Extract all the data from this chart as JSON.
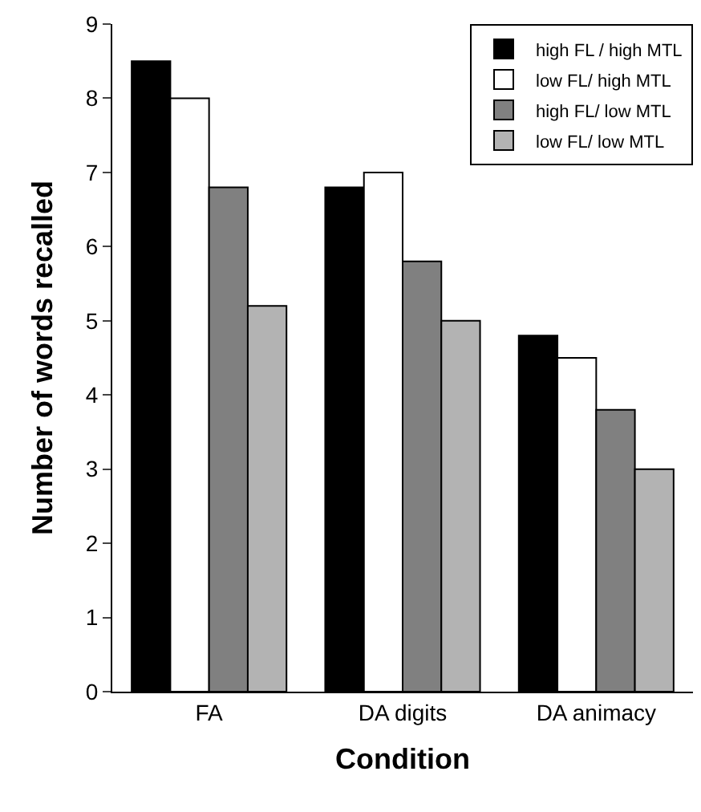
{
  "chart_data": {
    "type": "bar",
    "xlabel": "Condition",
    "ylabel": "Number of words recalled",
    "categories": [
      "FA",
      "DA digits",
      "DA animacy"
    ],
    "series": [
      {
        "name": "high FL / high MTL",
        "color": "#000000",
        "values": [
          8.5,
          6.8,
          4.8
        ]
      },
      {
        "name": "low FL/ high MTL",
        "color": "#ffffff",
        "values": [
          8.0,
          7.0,
          4.5
        ]
      },
      {
        "name": "high FL/ low MTL",
        "color": "#808080",
        "values": [
          6.8,
          5.8,
          3.8
        ]
      },
      {
        "name": "low FL/ low MTL",
        "color": "#b3b3b3",
        "values": [
          5.2,
          5.0,
          3.0
        ]
      }
    ],
    "ylim": [
      0,
      9
    ],
    "yticks": [
      0,
      1,
      2,
      3,
      4,
      5,
      6,
      7,
      8,
      9
    ],
    "legend": "top right"
  }
}
